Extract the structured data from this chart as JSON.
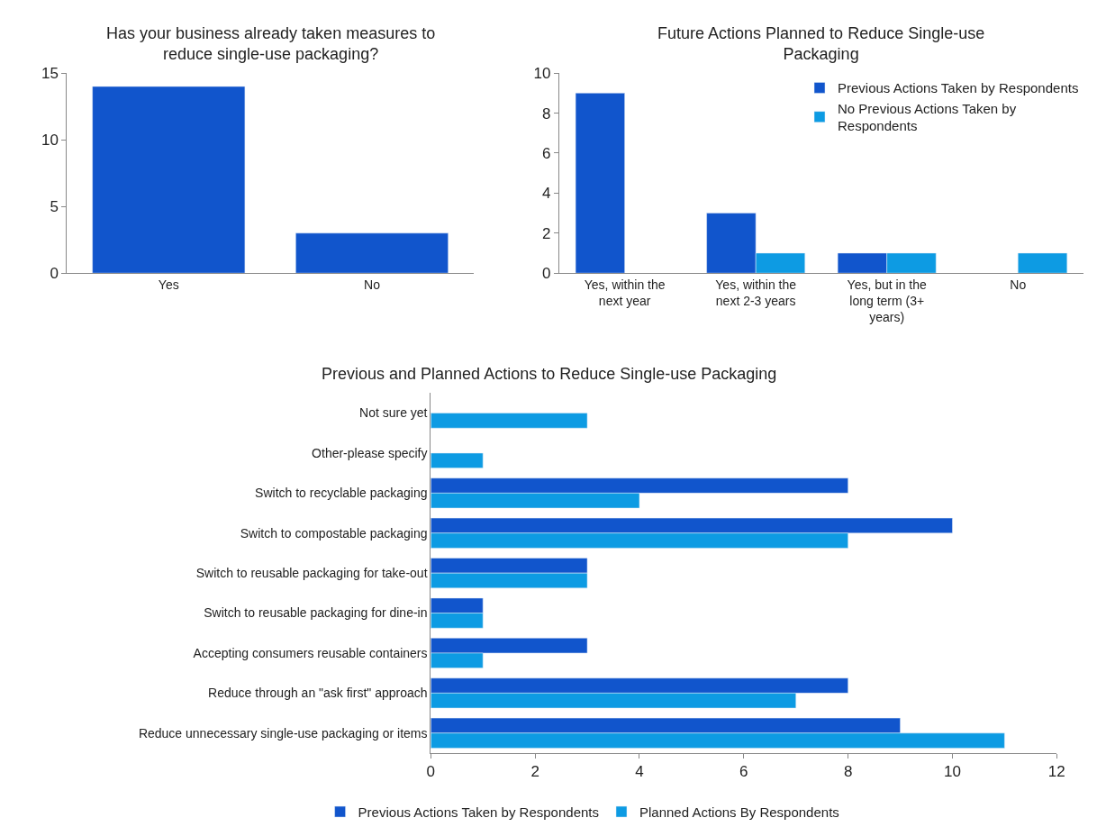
{
  "chart_data": [
    {
      "type": "bar",
      "title": "Has your business already taken measures to reduce single-use packaging?",
      "categories": [
        "Yes",
        "No"
      ],
      "values": [
        14,
        3
      ],
      "color": "#1155cc",
      "ylim": [
        0,
        15
      ],
      "yticks": [
        0,
        5,
        10,
        15
      ],
      "grid": false,
      "legend": false
    },
    {
      "type": "bar",
      "title": "Future Actions Planned to Reduce Single-use Packaging",
      "categories": [
        "Yes, within the next year",
        "Yes, within the next 2-3 years",
        "Yes, but in the long term (3+ years)",
        "No"
      ],
      "series": [
        {
          "name": "Previous Actions Taken by Respondents",
          "color": "#1155cc",
          "values": [
            9,
            3,
            1,
            null
          ]
        },
        {
          "name": "No Previous Actions Taken by Respondents",
          "color": "#0d9be3",
          "values": [
            null,
            1,
            1,
            1
          ]
        }
      ],
      "ylim": [
        0,
        10
      ],
      "yticks": [
        0,
        2,
        4,
        6,
        8,
        10
      ],
      "grid": false,
      "legend": "top right"
    },
    {
      "type": "bar",
      "orientation": "horizontal",
      "title": "Previous and Planned Actions to Reduce Single-use Packaging",
      "categories": [
        "Not sure yet",
        "Other-please specify",
        "Switch to recyclable packaging",
        "Switch to compostable packaging",
        "Switch to reusable packaging for take-out",
        "Switch to reusable packaging for dine-in",
        "Accepting consumers reusable containers",
        "Reduce through an \"ask first\" approach",
        "Reduce unnecessary single-use packaging or items"
      ],
      "series": [
        {
          "name": "Previous Actions Taken by Respondents",
          "color": "#1155cc",
          "values": [
            null,
            null,
            8,
            10,
            3,
            1,
            3,
            8,
            9
          ]
        },
        {
          "name": "Planned Actions By Respondents",
          "color": "#0d9be3",
          "values": [
            3,
            1,
            4,
            8,
            3,
            1,
            1,
            7,
            11
          ]
        }
      ],
      "xlim": [
        0,
        12
      ],
      "xticks": [
        0,
        2,
        4,
        6,
        8,
        10,
        12
      ],
      "grid": false,
      "legend": "bottom"
    }
  ]
}
